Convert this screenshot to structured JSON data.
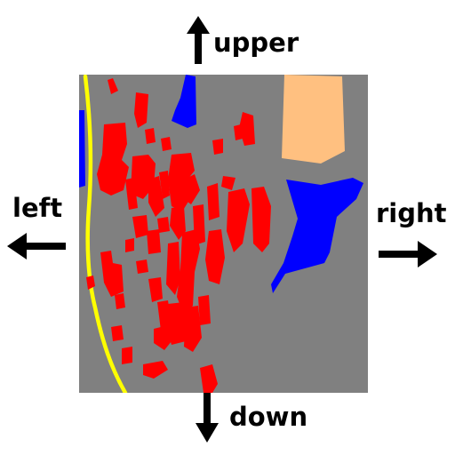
{
  "directions": {
    "upper": "upper",
    "down": "down",
    "left": "left",
    "right": "right"
  },
  "legend_colors": {
    "background": "#808080",
    "building": "#ff0000",
    "water": "#0000ff",
    "road": "#ffff00",
    "field": "#ffc080"
  },
  "icons": {
    "up": "arrow-up-icon",
    "down": "arrow-down-icon",
    "left": "arrow-left-icon",
    "right": "arrow-right-icon"
  }
}
